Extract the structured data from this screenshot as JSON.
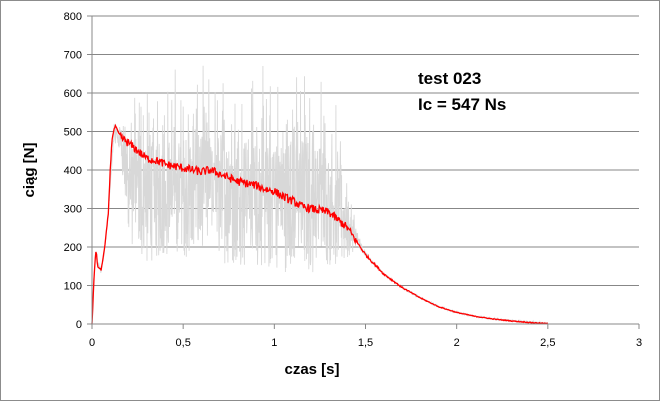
{
  "chart_data": {
    "type": "line",
    "title": "",
    "xlabel": "czas [s]",
    "ylabel": "ciąg [N]",
    "xlim": [
      0,
      3
    ],
    "ylim": [
      0,
      800
    ],
    "x_ticks": [
      0,
      0.5,
      1,
      1.5,
      2,
      2.5,
      3
    ],
    "x_tick_labels": [
      "0",
      "0,5",
      "1",
      "1,5",
      "2",
      "2,5",
      "3"
    ],
    "y_ticks": [
      0,
      100,
      200,
      300,
      400,
      500,
      600,
      700,
      800
    ],
    "y_tick_labels": [
      "0",
      "100",
      "200",
      "300",
      "400",
      "500",
      "600",
      "700",
      "800"
    ],
    "grid": "horizontal",
    "legend": "none",
    "annotations": [
      "test 023",
      "Ic = 547 Ns"
    ],
    "series": [
      {
        "color": "#d8d8d8",
        "style": "raw-noisy",
        "x": [
          0,
          0.01,
          0.02,
          0.03,
          0.05,
          0.07,
          0.09,
          0.11,
          0.12,
          0.14,
          0.16,
          0.18,
          0.2,
          0.25,
          0.3,
          0.35,
          0.4,
          0.45,
          0.5,
          0.55,
          0.6,
          0.65,
          0.7,
          0.75,
          0.8,
          0.85,
          0.9,
          0.95,
          1.0,
          1.05,
          1.1,
          1.15,
          1.2,
          1.25,
          1.3,
          1.35,
          1.4,
          1.45,
          1.5,
          1.6,
          1.7,
          1.8,
          1.9,
          2.0,
          2.1,
          2.2,
          2.3,
          2.4,
          2.5
        ],
        "y": [
          0,
          120,
          190,
          170,
          140,
          200,
          290,
          430,
          500,
          520,
          490,
          480,
          470,
          440,
          430,
          420,
          410,
          405,
          400,
          395,
          390,
          385,
          380,
          370,
          365,
          360,
          355,
          350,
          345,
          335,
          320,
          310,
          300,
          295,
          290,
          280,
          255,
          215,
          180,
          130,
          95,
          68,
          45,
          30,
          20,
          13,
          8,
          5,
          2
        ],
        "band_min": [
          0,
          110,
          170,
          150,
          130,
          190,
          280,
          420,
          480,
          440,
          420,
          300,
          220,
          160,
          150,
          160,
          170,
          160,
          180,
          160,
          150,
          170,
          160,
          150,
          160,
          140,
          150,
          130,
          140,
          130,
          150,
          140,
          130,
          140,
          150,
          140,
          160,
          200,
          175,
          128,
          93,
          66,
          43,
          28,
          18,
          11,
          6,
          4,
          1
        ],
        "band_max": [
          0,
          130,
          200,
          180,
          150,
          210,
          300,
          440,
          530,
          560,
          580,
          620,
          650,
          670,
          680,
          650,
          690,
          700,
          680,
          710,
          720,
          700,
          715,
          710,
          690,
          720,
          710,
          690,
          700,
          710,
          680,
          720,
          700,
          710,
          650,
          600,
          430,
          260,
          190,
          133,
          98,
          71,
          48,
          33,
          23,
          16,
          12,
          8,
          4
        ]
      },
      {
        "color": "#ff0000",
        "style": "filtered",
        "x": [
          0,
          0.01,
          0.02,
          0.025,
          0.03,
          0.05,
          0.07,
          0.09,
          0.1,
          0.11,
          0.12,
          0.13,
          0.15,
          0.17,
          0.2,
          0.25,
          0.3,
          0.35,
          0.4,
          0.45,
          0.5,
          0.55,
          0.6,
          0.65,
          0.7,
          0.75,
          0.8,
          0.85,
          0.9,
          0.95,
          1.0,
          1.05,
          1.1,
          1.15,
          1.2,
          1.25,
          1.3,
          1.35,
          1.4,
          1.45,
          1.5,
          1.55,
          1.6,
          1.7,
          1.8,
          1.9,
          2.0,
          2.1,
          2.2,
          2.3,
          2.4,
          2.5
        ],
        "y": [
          0,
          110,
          190,
          180,
          150,
          140,
          200,
          290,
          400,
          480,
          505,
          515,
          490,
          480,
          470,
          450,
          430,
          425,
          415,
          410,
          405,
          400,
          395,
          400,
          390,
          380,
          370,
          365,
          360,
          350,
          345,
          330,
          320,
          305,
          300,
          295,
          290,
          270,
          250,
          215,
          180,
          155,
          130,
          95,
          68,
          45,
          30,
          20,
          13,
          8,
          4,
          1
        ]
      }
    ]
  }
}
